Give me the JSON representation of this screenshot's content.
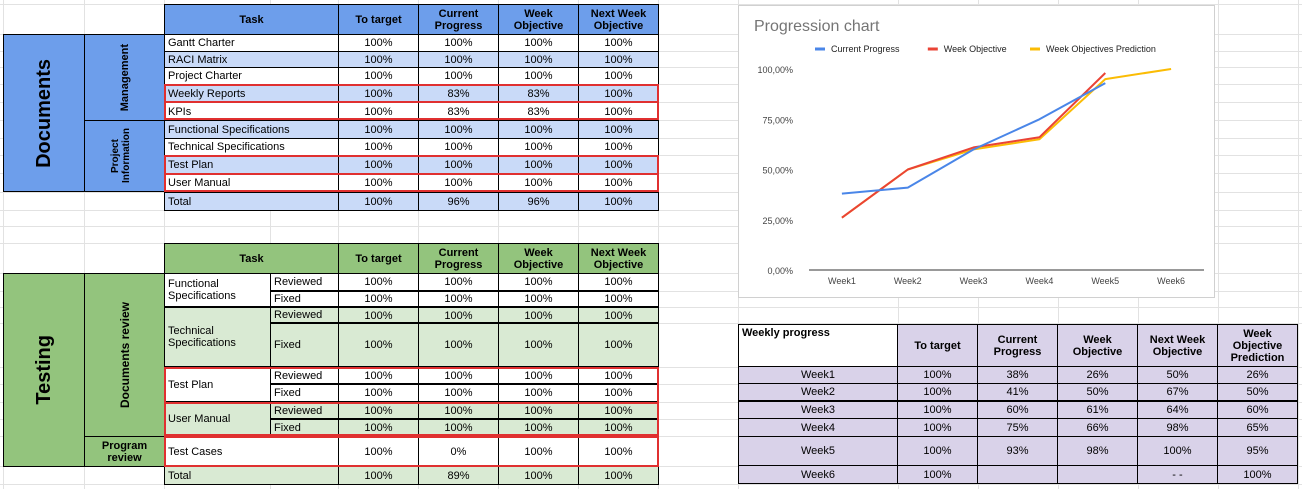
{
  "documents": {
    "section_label": "Documents",
    "group_management": "Management",
    "group_project_info": "Project Information",
    "headers": {
      "task": "Task",
      "to_target": "To target",
      "current": "Current Progress",
      "week_obj": "Week Objective",
      "next_obj": "Next Week Objective"
    },
    "rows": [
      {
        "task": "Gantt Charter",
        "to_target": "100%",
        "current": "100%",
        "week_obj": "100%",
        "next_obj": "100%"
      },
      {
        "task": "RACI Matrix",
        "to_target": "100%",
        "current": "100%",
        "week_obj": "100%",
        "next_obj": "100%"
      },
      {
        "task": "Project Charter",
        "to_target": "100%",
        "current": "100%",
        "week_obj": "100%",
        "next_obj": "100%"
      },
      {
        "task": "Weekly Reports",
        "to_target": "100%",
        "current": "83%",
        "week_obj": "83%",
        "next_obj": "100%"
      },
      {
        "task": "KPIs",
        "to_target": "100%",
        "current": "83%",
        "week_obj": "83%",
        "next_obj": "100%"
      },
      {
        "task": "Functional Specifications",
        "to_target": "100%",
        "current": "100%",
        "week_obj": "100%",
        "next_obj": "100%"
      },
      {
        "task": "Technical Specifications",
        "to_target": "100%",
        "current": "100%",
        "week_obj": "100%",
        "next_obj": "100%"
      },
      {
        "task": "Test Plan",
        "to_target": "100%",
        "current": "100%",
        "week_obj": "100%",
        "next_obj": "100%"
      },
      {
        "task": "User Manual",
        "to_target": "100%",
        "current": "100%",
        "week_obj": "100%",
        "next_obj": "100%"
      }
    ],
    "total": {
      "task": "Total",
      "to_target": "100%",
      "current": "96%",
      "week_obj": "96%",
      "next_obj": "100%"
    }
  },
  "testing": {
    "section_label": "Testing",
    "group_docs_review": "Documents review",
    "group_program_review": "Program review",
    "headers": {
      "task": "Task",
      "to_target": "To target",
      "current": "Current Progress",
      "week_obj": "Week Objective",
      "next_obj": "Next Week Objective"
    },
    "rows": [
      {
        "task": "Functional Specifications",
        "sub": "Reviewed",
        "to_target": "100%",
        "current": "100%",
        "week_obj": "100%",
        "next_obj": "100%"
      },
      {
        "task": "",
        "sub": "Fixed",
        "to_target": "100%",
        "current": "100%",
        "week_obj": "100%",
        "next_obj": "100%"
      },
      {
        "task": "Technical Specifications",
        "sub": "Reviewed",
        "to_target": "100%",
        "current": "100%",
        "week_obj": "100%",
        "next_obj": "100%"
      },
      {
        "task": "",
        "sub": "Fixed",
        "to_target": "100%",
        "current": "100%",
        "week_obj": "100%",
        "next_obj": "100%"
      },
      {
        "task": "Test Plan",
        "sub": "Reviewed",
        "to_target": "100%",
        "current": "100%",
        "week_obj": "100%",
        "next_obj": "100%"
      },
      {
        "task": "",
        "sub": "Fixed",
        "to_target": "100%",
        "current": "100%",
        "week_obj": "100%",
        "next_obj": "100%"
      },
      {
        "task": "User Manual",
        "sub": "Reviewed",
        "to_target": "100%",
        "current": "100%",
        "week_obj": "100%",
        "next_obj": "100%"
      },
      {
        "task": "",
        "sub": "Fixed",
        "to_target": "100%",
        "current": "100%",
        "week_obj": "100%",
        "next_obj": "100%"
      },
      {
        "task": "Test Cases",
        "sub": "",
        "to_target": "100%",
        "current": "0%",
        "week_obj": "100%",
        "next_obj": "100%"
      }
    ],
    "total": {
      "task": "Total",
      "to_target": "100%",
      "current": "89%",
      "week_obj": "100%",
      "next_obj": "100%"
    }
  },
  "weekly": {
    "headers": {
      "label": "Weekly progress",
      "to_target": "To target",
      "current": "Current Progress",
      "week_obj": "Week Objective",
      "next_obj": "Next Week Objective",
      "pred": "Week Objective Prediction"
    },
    "rows": [
      {
        "week": "Week1",
        "to_target": "100%",
        "current": "38%",
        "week_obj": "26%",
        "next_obj": "50%",
        "pred": "26%"
      },
      {
        "week": "Week2",
        "to_target": "100%",
        "current": "41%",
        "week_obj": "50%",
        "next_obj": "67%",
        "pred": "50%"
      },
      {
        "week": "Week3",
        "to_target": "100%",
        "current": "60%",
        "week_obj": "61%",
        "next_obj": "64%",
        "pred": "60%"
      },
      {
        "week": "Week4",
        "to_target": "100%",
        "current": "75%",
        "week_obj": "66%",
        "next_obj": "98%",
        "pred": "65%"
      },
      {
        "week": "Week5",
        "to_target": "100%",
        "current": "93%",
        "week_obj": "98%",
        "next_obj": "100%",
        "pred": "95%"
      },
      {
        "week": "Week6",
        "to_target": "100%",
        "current": "",
        "week_obj": "",
        "next_obj": "- -",
        "pred": "100%"
      }
    ]
  },
  "chart_data": {
    "type": "line",
    "title": "Progression chart",
    "categories": [
      "Week1",
      "Week2",
      "Week3",
      "Week4",
      "Week5",
      "Week6"
    ],
    "y_ticks": [
      "0,00%",
      "25,00%",
      "50,00%",
      "75,00%",
      "100,00%"
    ],
    "ylim": [
      0,
      100
    ],
    "legend_position": "top",
    "series": [
      {
        "name": "Current Progress",
        "color": "#4a86e8",
        "values": [
          38,
          41,
          60,
          75,
          93,
          null
        ]
      },
      {
        "name": "Week Objective",
        "color": "#ea4335",
        "values": [
          26,
          50,
          61,
          66,
          98,
          null
        ]
      },
      {
        "name": "Week Objectives Prediction",
        "color": "#fbbc04",
        "values": [
          26,
          50,
          60,
          65,
          95,
          100
        ]
      }
    ]
  }
}
